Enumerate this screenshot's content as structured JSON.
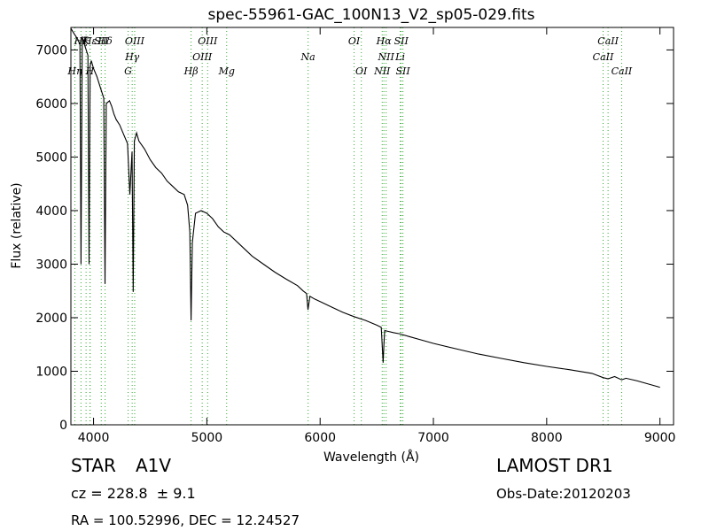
{
  "chart_data": {
    "type": "line",
    "title": "spec-55961-GAC_100N13_V2_sp05-029.fits",
    "xlabel": "Wavelength (Å)",
    "ylabel": "Flux (relative)",
    "xlim": [
      3800,
      9120
    ],
    "ylim": [
      0,
      7420
    ],
    "xticks": [
      4000,
      5000,
      6000,
      7000,
      8000,
      9000
    ],
    "yticks": [
      0,
      1000,
      2000,
      3000,
      4000,
      5000,
      6000,
      7000
    ],
    "grid": false,
    "series": [
      {
        "color": "#000000",
        "x": [
          3800,
          3830,
          3860,
          3880,
          3889,
          3900,
          3920,
          3950,
          3960,
          3970,
          3980,
          4000,
          4030,
          4060,
          4090,
          4101,
          4112,
          4140,
          4160,
          4180,
          4200,
          4230,
          4260,
          4300,
          4320,
          4340,
          4350,
          4360,
          4380,
          4400,
          4450,
          4500,
          4550,
          4600,
          4650,
          4700,
          4750,
          4800,
          4830,
          4850,
          4861,
          4872,
          4900,
          4950,
          5000,
          5050,
          5100,
          5150,
          5200,
          5300,
          5400,
          5500,
          5600,
          5700,
          5800,
          5850,
          5880,
          5893,
          5910,
          5950,
          6000,
          6100,
          6200,
          6300,
          6400,
          6500,
          6540,
          6556,
          6563,
          6570,
          6590,
          6650,
          6700,
          6800,
          6900,
          7000,
          7200,
          7400,
          7600,
          7800,
          8000,
          8200,
          8400,
          8498,
          8542,
          8600,
          8662,
          8700,
          8800,
          8900,
          9000
        ],
        "y": [
          7400,
          7300,
          7200,
          7100,
          3000,
          7250,
          7100,
          6900,
          3000,
          6700,
          6800,
          6650,
          6500,
          6300,
          6100,
          2630,
          6000,
          6050,
          5950,
          5800,
          5700,
          5600,
          5450,
          5250,
          4300,
          5100,
          2480,
          5300,
          5450,
          5300,
          5150,
          4950,
          4800,
          4700,
          4550,
          4450,
          4350,
          4300,
          4100,
          3600,
          1950,
          3400,
          3950,
          4000,
          3950,
          3850,
          3700,
          3600,
          3550,
          3350,
          3150,
          3000,
          2850,
          2720,
          2600,
          2500,
          2450,
          2150,
          2400,
          2350,
          2300,
          2200,
          2100,
          2020,
          1950,
          1860,
          1820,
          1160,
          1500,
          1760,
          1750,
          1720,
          1700,
          1640,
          1580,
          1520,
          1420,
          1320,
          1240,
          1160,
          1090,
          1030,
          960,
          880,
          860,
          900,
          840,
          870,
          820,
          760,
          700
        ]
      }
    ],
    "lines": [
      {
        "wavelength": 3835,
        "label": "Hη",
        "row": "low"
      },
      {
        "wavelength": 3889,
        "label": "Hζ",
        "row": "high"
      },
      {
        "wavelength": 3934,
        "label": "K",
        "row": "high"
      },
      {
        "wavelength": 3968,
        "label": "H",
        "row": "low"
      },
      {
        "wavelength": 3970,
        "label": "Hε",
        "row": "high"
      },
      {
        "wavelength": 4068,
        "label": "SII",
        "row": "high"
      },
      {
        "wavelength": 4102,
        "label": "Hδ",
        "row": "high"
      },
      {
        "wavelength": 4305,
        "label": "G",
        "row": "low"
      },
      {
        "wavelength": 4341,
        "label": "Hγ",
        "row": "mid"
      },
      {
        "wavelength": 4363,
        "label": "OIII",
        "row": "high"
      },
      {
        "wavelength": 4861,
        "label": "Hβ",
        "row": "low"
      },
      {
        "wavelength": 4959,
        "label": "OIII",
        "row": "mid"
      },
      {
        "wavelength": 5007,
        "label": "OIII",
        "row": "high"
      },
      {
        "wavelength": 5175,
        "label": "Mg",
        "row": "low"
      },
      {
        "wavelength": 5894,
        "label": "Na",
        "row": "mid"
      },
      {
        "wavelength": 6300,
        "label": "OI",
        "row": "high"
      },
      {
        "wavelength": 6364,
        "label": "OI",
        "row": "low"
      },
      {
        "wavelength": 6548,
        "label": "NII",
        "row": "low"
      },
      {
        "wavelength": 6563,
        "label": "Hα",
        "row": "high"
      },
      {
        "wavelength": 6583,
        "label": "NII",
        "row": "mid"
      },
      {
        "wavelength": 6707,
        "label": "Li",
        "row": "mid"
      },
      {
        "wavelength": 6716,
        "label": "SII",
        "row": "high"
      },
      {
        "wavelength": 6731,
        "label": "SII",
        "row": "low"
      },
      {
        "wavelength": 8498,
        "label": "CaII",
        "row": "mid"
      },
      {
        "wavelength": 8542,
        "label": "CaII",
        "row": "high"
      },
      {
        "wavelength": 8662,
        "label": "CaII",
        "row": "low"
      }
    ],
    "line_color": "#33aa33"
  },
  "footer": {
    "class": "STAR",
    "subclass": "A1V",
    "cz": "cz = 228.8  ± 9.1",
    "radec": "RA = 100.52996, DEC = 12.24527",
    "survey": "LAMOST DR1",
    "obs_date": "Obs-Date:20120203"
  }
}
